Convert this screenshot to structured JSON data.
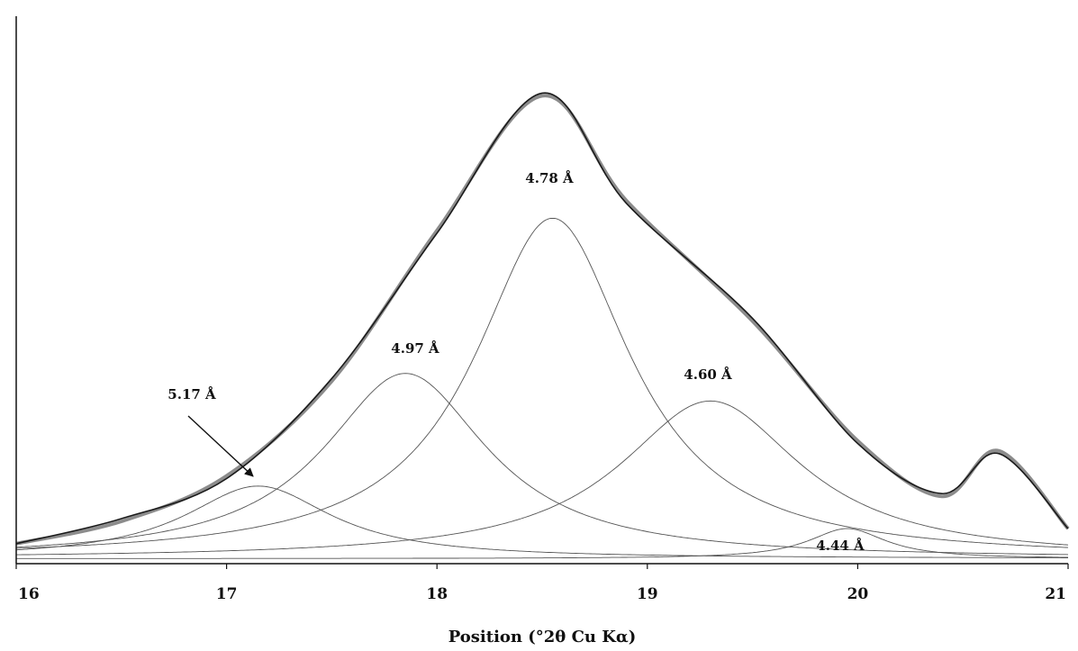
{
  "chart_data": {
    "type": "line",
    "title": "",
    "xlabel": "Position (°2θ Cu Kα)",
    "ylabel": "",
    "xlim": [
      16,
      21
    ],
    "ylim": [
      0,
      1
    ],
    "x_ticks": [
      "16",
      "17",
      "18",
      "19",
      "20",
      "21"
    ],
    "grid": false,
    "legend": "none",
    "background_level": 0.01,
    "components": [
      {
        "label": "5.17 Å",
        "center": 17.15,
        "height": 0.145,
        "fwhm": 0.85
      },
      {
        "label": "4.97 Å",
        "center": 17.85,
        "height": 0.37,
        "fwhm": 0.95
      },
      {
        "label": "4.78 Å",
        "center": 18.55,
        "height": 0.68,
        "fwhm": 0.9
      },
      {
        "label": "4.60 Å",
        "center": 19.3,
        "height": 0.315,
        "fwhm": 1.05
      },
      {
        "label": "4.44 Å",
        "center": 19.95,
        "height": 0.06,
        "fwhm": 0.45
      },
      {
        "label": "",
        "center": 20.67,
        "height": 0.17,
        "fwhm": 0.17
      }
    ],
    "fit_envelope": {
      "x": [
        16.0,
        16.5,
        17.0,
        17.5,
        18.0,
        18.5,
        18.9,
        19.5,
        20.0,
        20.4,
        20.67,
        21.0
      ],
      "y": [
        0.04,
        0.09,
        0.17,
        0.37,
        0.66,
        0.94,
        0.72,
        0.49,
        0.24,
        0.14,
        0.22,
        0.07
      ]
    },
    "annotations": [
      {
        "text": "4.78 Å"
      },
      {
        "text": "4.97 Å"
      },
      {
        "text": "5.17 Å",
        "arrow": true
      },
      {
        "text": "4.60 Å"
      },
      {
        "text": "4.44 Å"
      }
    ],
    "colors": {
      "observed": "#8c8c8c",
      "fit": "#1a1a1a",
      "component": "#555555",
      "axis": "#111111"
    }
  }
}
